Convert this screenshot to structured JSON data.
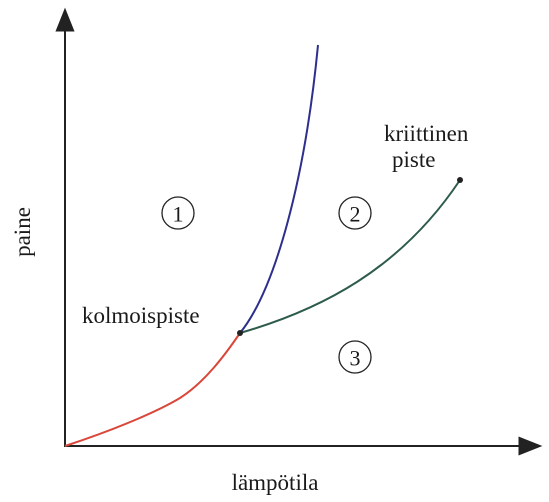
{
  "labels": {
    "y_axis": "paine",
    "x_axis": "lämpötila",
    "triple_point": "kolmoispiste",
    "critical_point": [
      "kriittinen",
      "piste"
    ]
  },
  "regions": [
    "1",
    "2",
    "3"
  ]
}
